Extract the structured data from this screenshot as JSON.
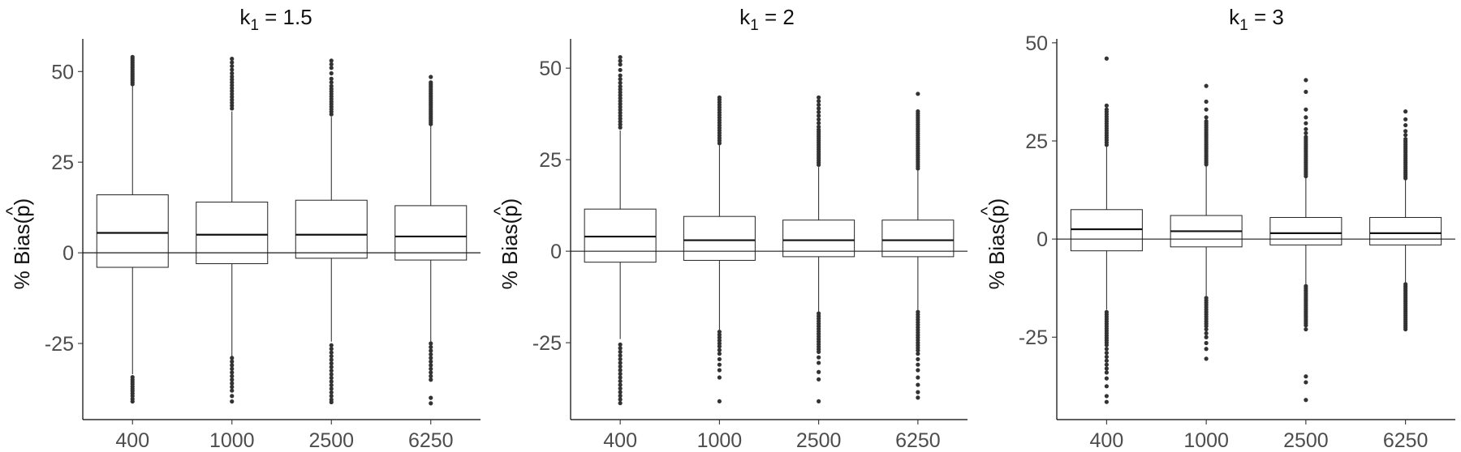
{
  "chart_data": [
    {
      "type": "box",
      "title": "k1 = 1.5",
      "title_main": "k",
      "title_sub": "1",
      "title_rest": " = 1.5",
      "ylabel_prefix": "% Bias(",
      "ylabel_var": "p",
      "ylabel_hat": "^",
      "ylabel_suffix": ")",
      "xlabel": "",
      "categories": [
        "400",
        "1000",
        "2500",
        "6250"
      ],
      "yticks": [
        -25,
        0,
        25,
        50
      ],
      "ytick_labels": [
        "-25",
        "0",
        "25",
        "50"
      ],
      "ylim": [
        -46,
        59
      ],
      "reference_line": 0,
      "grid": false,
      "boxes": [
        {
          "q1": -4,
          "median": 5.5,
          "q3": 16,
          "whisker_low": -33.5,
          "whisker_high": 46,
          "outliers_low": [
            -34.3,
            -35,
            -35.6,
            -36.2,
            -36.9,
            -37.5,
            -38.1,
            -38.8,
            -39.5,
            -40.3,
            -41
          ],
          "outliers_high": [
            46.5,
            47,
            47.5,
            48,
            48.5,
            49,
            49.5,
            50,
            50.5,
            51,
            51.5,
            52,
            52.5,
            53,
            53.5,
            54
          ]
        },
        {
          "q1": -3,
          "median": 5,
          "q3": 14,
          "whisker_low": -28.5,
          "whisker_high": 39,
          "outliers_low": [
            -29,
            -30,
            -31,
            -32,
            -33,
            -34,
            -35,
            -36,
            -37,
            -38,
            -39.5,
            -41
          ],
          "outliers_high": [
            39.8,
            40.6,
            41.4,
            42.2,
            43,
            43.8,
            44.6,
            45.4,
            46.2,
            47,
            47.8,
            48.6,
            49.5,
            50.5,
            51.5,
            52.5,
            53.5
          ]
        },
        {
          "q1": -1.5,
          "median": 5,
          "q3": 14.5,
          "whisker_low": -24.5,
          "whisker_high": 37.5,
          "outliers_low": [
            -25.5,
            -26.5,
            -27.5,
            -28.5,
            -29.5,
            -30.5,
            -31.5,
            -32.5,
            -33.5,
            -34.5,
            -35.5,
            -36.5,
            -37.5,
            -38.5,
            -39.5,
            -40.5,
            -41.2
          ],
          "outliers_high": [
            38.2,
            38.9,
            39.6,
            40.3,
            41,
            41.7,
            42.4,
            43.1,
            43.8,
            44.5,
            45.2,
            46,
            47,
            48,
            49.5,
            51,
            52,
            53
          ]
        },
        {
          "q1": -2,
          "median": 4.5,
          "q3": 13,
          "whisker_low": -24.5,
          "whisker_high": 35,
          "outliers_low": [
            -25,
            -26,
            -27,
            -28,
            -29,
            -30,
            -31,
            -32,
            -33,
            -34,
            -35,
            -40,
            -41.5
          ],
          "outliers_high": [
            35.5,
            36,
            36.5,
            37,
            37.5,
            38,
            38.5,
            39,
            39.5,
            40,
            40.5,
            41,
            41.5,
            42,
            42.5,
            43,
            43.5,
            44,
            44.5,
            45,
            45.5,
            46,
            46.5,
            47,
            48.5
          ]
        }
      ]
    },
    {
      "type": "box",
      "title": "k1 = 2",
      "title_main": "k",
      "title_sub": "1",
      "title_rest": " = 2",
      "ylabel_prefix": "% Bias(",
      "ylabel_var": "p",
      "ylabel_hat": "^",
      "ylabel_suffix": ")",
      "xlabel": "",
      "categories": [
        "400",
        "1000",
        "2500",
        "6250"
      ],
      "yticks": [
        -25,
        0,
        25,
        50
      ],
      "ytick_labels": [
        "-25",
        "0",
        "25",
        "50"
      ],
      "ylim": [
        -46,
        58
      ],
      "reference_line": 0,
      "grid": false,
      "boxes": [
        {
          "q1": -3,
          "median": 4,
          "q3": 11.5,
          "whisker_low": -24,
          "whisker_high": 33,
          "outliers_low": [
            -25.5,
            -26.5,
            -27.5,
            -28.5,
            -29.5,
            -30.5,
            -31.5,
            -32.5,
            -33.5,
            -34.5,
            -35.5,
            -36.5,
            -37.5,
            -38.5,
            -39.5,
            -40.5,
            -41.5
          ],
          "outliers_high": [
            33.8,
            34.6,
            35.4,
            36.2,
            37,
            37.8,
            38.6,
            39.4,
            40.2,
            41,
            41.8,
            42.6,
            43.4,
            44.2,
            45,
            46,
            47,
            48,
            49.5,
            51,
            52,
            53
          ]
        },
        {
          "q1": -2.5,
          "median": 3,
          "q3": 9.5,
          "whisker_low": -21.5,
          "whisker_high": 29,
          "outliers_low": [
            -22,
            -22.8,
            -23.6,
            -24.4,
            -25.2,
            -26,
            -27,
            -28,
            -29.5,
            -31,
            -32.5,
            -34.5,
            -41
          ],
          "outliers_high": [
            29.5,
            30.2,
            30.9,
            31.6,
            32.3,
            33,
            33.7,
            34.4,
            35.1,
            35.8,
            36.5,
            37.2,
            37.9,
            38.6,
            39.3,
            40,
            40.7,
            41.4,
            42
          ]
        },
        {
          "q1": -1.5,
          "median": 3,
          "q3": 8.5,
          "whisker_low": -16.5,
          "whisker_high": 23,
          "outliers_low": [
            -17,
            -17.7,
            -18.4,
            -19.1,
            -19.8,
            -20.5,
            -21.2,
            -21.9,
            -22.6,
            -23.3,
            -24,
            -24.7,
            -25.4,
            -26.1,
            -26.8,
            -27.5,
            -29,
            -30.5,
            -33,
            -35,
            -41
          ],
          "outliers_high": [
            23.6,
            24.2,
            24.8,
            25.4,
            26,
            26.6,
            27.2,
            27.8,
            28.4,
            29,
            29.6,
            30.2,
            30.8,
            31.4,
            32,
            32.6,
            33.2,
            34,
            35,
            36,
            37,
            38,
            39,
            40,
            41,
            42
          ]
        },
        {
          "q1": -1.5,
          "median": 3,
          "q3": 8.5,
          "whisker_low": -16,
          "whisker_high": 22,
          "outliers_low": [
            -16.6,
            -17.3,
            -18,
            -18.7,
            -19.4,
            -20.1,
            -20.8,
            -21.5,
            -22.2,
            -22.9,
            -23.6,
            -24.3,
            -25,
            -25.7,
            -26.4,
            -27.1,
            -28,
            -29.5,
            -31,
            -32.5,
            -34.5,
            -36.5,
            -38.5,
            -40
          ],
          "outliers_high": [
            22.6,
            23.2,
            23.8,
            24.4,
            25,
            25.6,
            26.2,
            26.8,
            27.4,
            28,
            28.6,
            29.2,
            29.8,
            30.4,
            31,
            31.6,
            32.2,
            32.8,
            33.4,
            34,
            34.6,
            35.2,
            35.8,
            36.4,
            37,
            37.6,
            38.2,
            43
          ]
        }
      ]
    },
    {
      "type": "box",
      "title": "k1 = 3",
      "title_main": "k",
      "title_sub": "1",
      "title_rest": " = 3",
      "ylabel_prefix": "% Bias(",
      "ylabel_var": "p",
      "ylabel_hat": "^",
      "ylabel_suffix": ")",
      "xlabel": "",
      "categories": [
        "400",
        "1000",
        "2500",
        "6250"
      ],
      "yticks": [
        -25,
        0,
        25,
        50
      ],
      "ytick_labels": [
        "-25",
        "0",
        "25",
        "50"
      ],
      "ylim": [
        -46,
        51
      ],
      "reference_line": 0,
      "grid": false,
      "boxes": [
        {
          "q1": -3,
          "median": 2.5,
          "q3": 7.5,
          "whisker_low": -18,
          "whisker_high": 23.5,
          "outliers_low": [
            -18.6,
            -19.2,
            -19.8,
            -20.4,
            -21,
            -21.6,
            -22.2,
            -22.8,
            -23.4,
            -24,
            -24.6,
            -25.2,
            -25.8,
            -26.4,
            -27,
            -28,
            -29,
            -30,
            -31,
            -32,
            -33,
            -34,
            -35.5,
            -37.5,
            -40,
            -41.5
          ],
          "outliers_high": [
            24,
            24.6,
            25.2,
            25.8,
            26.4,
            27,
            27.6,
            28.2,
            28.8,
            29.4,
            30,
            30.6,
            31.2,
            31.8,
            32.4,
            33,
            34,
            46
          ]
        },
        {
          "q1": -2,
          "median": 2,
          "q3": 6,
          "whisker_low": -14.5,
          "whisker_high": 18.5,
          "outliers_low": [
            -15,
            -15.6,
            -16.2,
            -16.8,
            -17.4,
            -18,
            -18.6,
            -19.2,
            -19.8,
            -20.4,
            -21,
            -21.6,
            -22.2,
            -23,
            -24,
            -25,
            -26.5,
            -28,
            -30.5
          ],
          "outliers_high": [
            19,
            19.5,
            20,
            20.5,
            21,
            21.5,
            22,
            22.5,
            23,
            23.5,
            24,
            24.5,
            25,
            25.5,
            26,
            26.5,
            27,
            27.5,
            28,
            28.5,
            29,
            29.5,
            30,
            31,
            33,
            35,
            39
          ]
        },
        {
          "q1": -1.5,
          "median": 1.5,
          "q3": 5.5,
          "whisker_low": -11.5,
          "whisker_high": 15.5,
          "outliers_low": [
            -12,
            -12.5,
            -13,
            -13.5,
            -14,
            -14.5,
            -15,
            -15.5,
            -16,
            -16.5,
            -17,
            -17.5,
            -18,
            -18.5,
            -19,
            -19.5,
            -20,
            -20.5,
            -21,
            -21.5,
            -22,
            -23,
            -35,
            -36.5,
            -41
          ],
          "outliers_high": [
            16,
            16.5,
            17,
            17.5,
            18,
            18.5,
            19,
            19.5,
            20,
            20.5,
            21,
            21.5,
            22,
            22.5,
            23,
            23.5,
            24,
            24.5,
            25,
            25.5,
            26,
            27,
            28,
            29.5,
            31,
            33,
            37.5,
            40.5
          ]
        },
        {
          "q1": -1.5,
          "median": 1.5,
          "q3": 5.5,
          "whisker_low": -11,
          "whisker_high": 15,
          "outliers_low": [
            -11.5,
            -12,
            -12.5,
            -13,
            -13.5,
            -14,
            -14.5,
            -15,
            -15.5,
            -16,
            -16.5,
            -17,
            -17.5,
            -18,
            -18.5,
            -19,
            -19.5,
            -20,
            -20.5,
            -21,
            -21.5,
            -22,
            -22.5,
            -23
          ],
          "outliers_high": [
            15.5,
            16,
            16.5,
            17,
            17.5,
            18,
            18.5,
            19,
            19.5,
            20,
            20.5,
            21,
            21.5,
            22,
            22.5,
            23,
            23.5,
            24,
            24.5,
            25,
            25.5,
            26.5,
            27.5,
            29,
            30.5,
            32.5
          ]
        }
      ]
    }
  ]
}
